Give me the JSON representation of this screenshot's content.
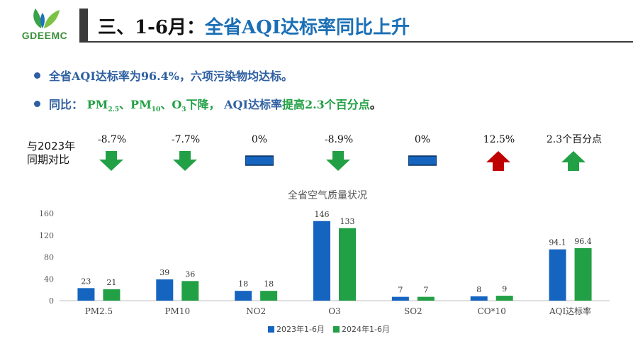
{
  "logo": {
    "text": "GDEEMC"
  },
  "slide": {
    "title_prefix": "三、1-6月：",
    "title_main": "全省AQI达标率同比上升"
  },
  "bullets": {
    "b1": "全省AQI达标率为96.4%，六项污染物均达标。",
    "b2_prefix": "同比：",
    "b2_pm25": "PM",
    "b2_pm25_sub": "2.5",
    "b2_sep1": "、",
    "b2_pm10": "PM",
    "b2_pm10_sub": "10",
    "b2_sep2": "、",
    "b2_o3": "O",
    "b2_o3_sub": "3",
    "b2_down": "下降，",
    "b2_aqi": "AQI达标率",
    "b2_up": "提高2.3个百分点",
    "b2_end": "。"
  },
  "comparison": {
    "label_line1": "与2023年",
    "label_line2": "同期对比",
    "items": [
      {
        "value": "-8.7%",
        "trend": "down"
      },
      {
        "value": "-7.7%",
        "trend": "down"
      },
      {
        "value": "0%",
        "trend": "flat"
      },
      {
        "value": "-8.9%",
        "trend": "down"
      },
      {
        "value": "0%",
        "trend": "flat"
      },
      {
        "value": "12.5%",
        "trend": "up-bad"
      },
      {
        "value": "2.3个百分点",
        "trend": "up-good"
      }
    ],
    "colors": {
      "down": "#22a045",
      "flat": "#1565c0",
      "up-bad": "#c00000",
      "up-good": "#22a045"
    }
  },
  "chart_data": {
    "type": "bar",
    "title": "全省空气质量状况",
    "categories": [
      "PM2.5",
      "PM10",
      "NO2",
      "O3",
      "SO2",
      "CO*10",
      "AQI达标率"
    ],
    "series": [
      {
        "name": "2023年1-6月",
        "color": "#1565c0",
        "values": [
          23,
          39,
          18,
          146,
          7,
          8,
          94.1
        ]
      },
      {
        "name": "2024年1-6月",
        "color": "#22a045",
        "values": [
          21,
          36,
          18,
          133,
          7,
          9,
          96.4
        ]
      }
    ],
    "ylim": [
      0,
      160
    ],
    "yticks": [
      0,
      40,
      80,
      120,
      160
    ],
    "legend": "bottom",
    "grid": false
  }
}
